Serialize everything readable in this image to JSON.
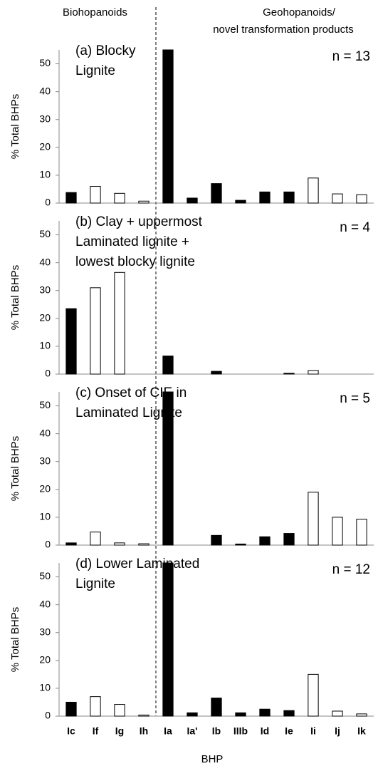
{
  "header": {
    "left": "Biohopanoids",
    "right_lines": [
      "Geohopanoids/",
      "novel transformation products"
    ]
  },
  "x_label": "BHP",
  "chart_data": [
    {
      "type": "bar",
      "title_lines": [
        "(a) Blocky",
        "Lignite"
      ],
      "annotation": "n = 13",
      "y_label": "% Total BHPs",
      "values": [
        3.8,
        6,
        3.5,
        0.7,
        55,
        1.8,
        7,
        1,
        4,
        4,
        9,
        3.3,
        3
      ],
      "bar_colors": [
        "#000000",
        "#ffffff",
        "#ffffff",
        "#ffffff",
        "#000000",
        "#000000",
        "#000000",
        "#000000",
        "#000000",
        "#000000",
        "#ffffff",
        "#ffffff",
        "#ffffff"
      ],
      "ylim": [
        0,
        55
      ],
      "yticks": [
        0,
        10,
        20,
        30,
        40,
        50
      ]
    },
    {
      "type": "bar",
      "title_lines": [
        "(b) Clay + uppermost",
        "Laminated lignite +",
        "lowest blocky lignite"
      ],
      "annotation": "n = 4",
      "y_label": "% Total BHPs",
      "values": [
        23.5,
        31,
        36.5,
        0,
        6.5,
        0,
        1,
        0,
        0,
        0.3,
        1.3,
        0,
        0
      ],
      "bar_colors": [
        "#000000",
        "#ffffff",
        "#ffffff",
        "#ffffff",
        "#000000",
        "#000000",
        "#000000",
        "#000000",
        "#000000",
        "#000000",
        "#ffffff",
        "#ffffff",
        "#ffffff"
      ],
      "ylim": [
        0,
        55
      ],
      "yticks": [
        0,
        10,
        20,
        30,
        40,
        50
      ]
    },
    {
      "type": "bar",
      "title_lines": [
        "(c) Onset of CIE in",
        "Laminated Lignite"
      ],
      "annotation": "n = 5",
      "y_label": "% Total BHPs",
      "values": [
        0.8,
        4.7,
        0.8,
        0.5,
        55,
        0,
        3.5,
        0.4,
        3,
        4.2,
        19,
        10,
        9.3
      ],
      "bar_colors": [
        "#000000",
        "#ffffff",
        "#ffffff",
        "#ffffff",
        "#000000",
        "#000000",
        "#000000",
        "#000000",
        "#000000",
        "#000000",
        "#ffffff",
        "#ffffff",
        "#ffffff"
      ],
      "ylim": [
        0,
        55
      ],
      "yticks": [
        0,
        10,
        20,
        30,
        40,
        50
      ]
    },
    {
      "type": "bar",
      "title_lines": [
        "(d) Lower Laminated",
        "Lignite"
      ],
      "annotation": "n = 12",
      "y_label": "% Total BHPs",
      "categories": [
        "Ic",
        "If",
        "Ig",
        "Ih",
        "Ia",
        "Ia'",
        "Ib",
        "IIIb",
        "Id",
        "Ie",
        "Ii",
        "Ij",
        "Ik"
      ],
      "values": [
        5,
        7,
        4.2,
        0.4,
        55,
        1.2,
        6.5,
        1.2,
        2.5,
        2,
        15,
        1.8,
        0.8
      ],
      "bar_colors": [
        "#000000",
        "#ffffff",
        "#ffffff",
        "#ffffff",
        "#000000",
        "#000000",
        "#000000",
        "#000000",
        "#000000",
        "#000000",
        "#ffffff",
        "#ffffff",
        "#ffffff"
      ],
      "ylim": [
        0,
        55
      ],
      "yticks": [
        0,
        10,
        20,
        30,
        40,
        50
      ]
    }
  ]
}
